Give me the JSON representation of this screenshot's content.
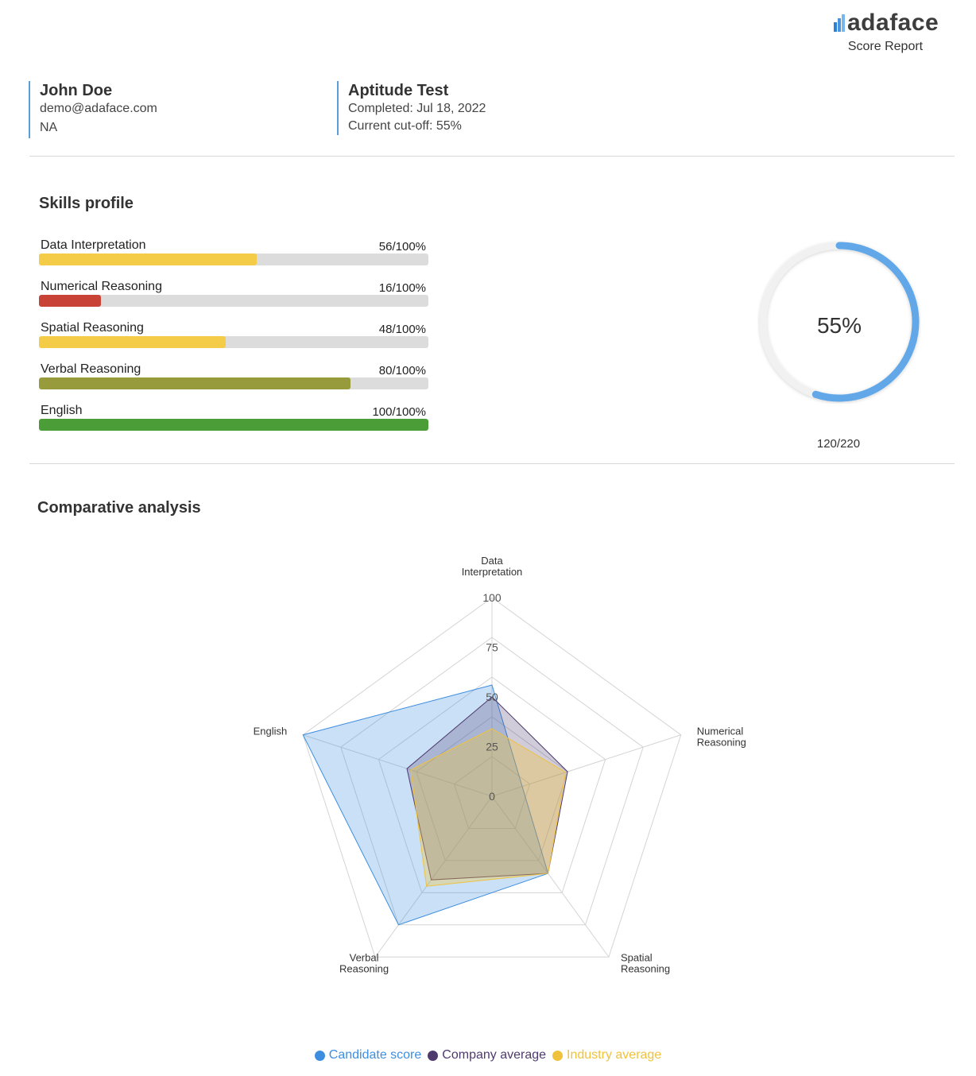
{
  "brand": {
    "name": "adaface",
    "report_label": "Score Report"
  },
  "candidate": {
    "name": "John Doe",
    "email": "demo@adaface.com",
    "extra": "NA"
  },
  "test": {
    "name": "Aptitude Test",
    "completed": "Completed: Jul 18, 2022",
    "cutoff": "Current cut-off: 55%"
  },
  "skills_profile": {
    "title": "Skills profile",
    "skills": [
      {
        "name": "Data Interpretation",
        "score_text": "56/100%",
        "percent": 56,
        "color": "#f5cc47"
      },
      {
        "name": "Numerical Reasoning",
        "score_text": "16/100%",
        "percent": 16,
        "color": "#c84236"
      },
      {
        "name": "Spatial Reasoning",
        "score_text": "48/100%",
        "percent": 48,
        "color": "#f5cc47"
      },
      {
        "name": "Verbal Reasoning",
        "score_text": "80/100%",
        "percent": 80,
        "color": "#979b3b"
      },
      {
        "name": "English",
        "score_text": "100/100%",
        "percent": 100,
        "color": "#4b9e37"
      }
    ]
  },
  "overall": {
    "percent_text": "55%",
    "percent": 55,
    "score_text": "120/220",
    "color": "#62a8e8"
  },
  "comparative": {
    "title": "Comparative analysis"
  },
  "chart_data": {
    "type": "radar",
    "axes": [
      "Data Interpretation",
      "Numerical Reasoning",
      "Spatial Reasoning",
      "Verbal Reasoning",
      "English"
    ],
    "axis_label_lines": [
      [
        "Data",
        "Interpretation"
      ],
      [
        "Numerical",
        "Reasoning"
      ],
      [
        "Spatial",
        "Reasoning"
      ],
      [
        "Verbal",
        "Reasoning"
      ],
      [
        "English"
      ]
    ],
    "ticks": [
      0,
      25,
      50,
      75,
      100
    ],
    "range": [
      0,
      100
    ],
    "series": [
      {
        "name": "Candidate score",
        "values": [
          56,
          16,
          48,
          80,
          100
        ],
        "color": "#3e8ee0"
      },
      {
        "name": "Company average",
        "values": [
          50,
          40,
          48,
          52,
          45
        ],
        "color": "#4f3a6e"
      },
      {
        "name": "Industry average",
        "values": [
          34,
          39,
          48,
          56,
          43
        ],
        "color": "#f0c23b"
      }
    ],
    "legend_position": "bottom"
  }
}
